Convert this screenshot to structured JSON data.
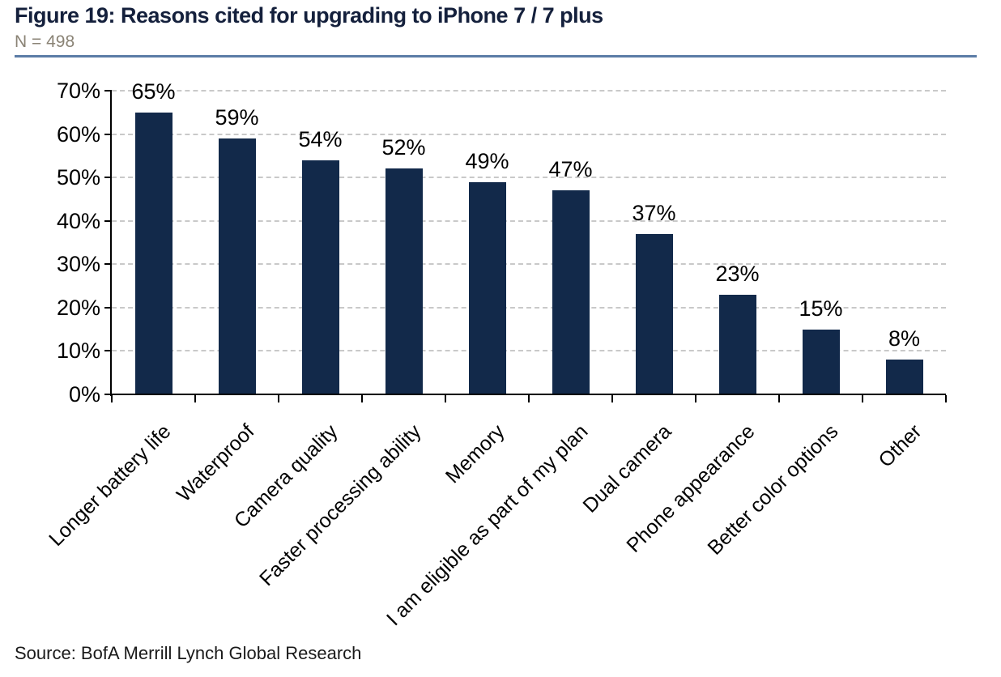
{
  "header": {
    "title": "Figure 19: Reasons cited for upgrading to iPhone 7 / 7 plus",
    "subtitle": "N = 498"
  },
  "footer": {
    "source": "Source: BofA Merrill Lynch Global Research"
  },
  "colors": {
    "bar": "#12294A",
    "title_text": "#14203C",
    "subtitle_text": "#8A8375",
    "divider": "#5B7CA6",
    "gridline": "#C9C9C9",
    "axis": "#000000"
  },
  "chart_data": {
    "type": "bar",
    "title": "Figure 19: Reasons cited for upgrading to iPhone 7 / 7 plus",
    "subtitle": "N = 498",
    "categories": [
      "Longer battery life",
      "Waterproof",
      "Camera quality",
      "Faster processing ability",
      "Memory",
      "I am eligible as part of my plan",
      "Dual camera",
      "Phone appearance",
      "Better color options",
      "Other"
    ],
    "values": [
      65,
      59,
      54,
      52,
      49,
      47,
      37,
      23,
      15,
      8
    ],
    "value_labels": [
      "65%",
      "59%",
      "54%",
      "52%",
      "49%",
      "47%",
      "37%",
      "23%",
      "15%",
      "8%"
    ],
    "xlabel": "",
    "ylabel": "",
    "ylim": [
      0,
      70
    ],
    "yticks": [
      0,
      10,
      20,
      30,
      40,
      50,
      60,
      70
    ],
    "ytick_labels": [
      "0%",
      "10%",
      "20%",
      "30%",
      "40%",
      "50%",
      "60%",
      "70%"
    ],
    "grid": "horizontal-dashed",
    "legend": "none",
    "bar_color": "#12294A",
    "x_label_rotation_deg": 45
  }
}
